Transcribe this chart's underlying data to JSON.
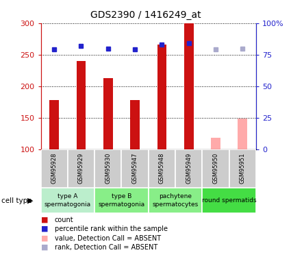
{
  "title": "GDS2390 / 1416249_at",
  "samples": [
    "GSM95928",
    "GSM95929",
    "GSM95930",
    "GSM95947",
    "GSM95948",
    "GSM95949",
    "GSM95950",
    "GSM95951"
  ],
  "bar_values": [
    178,
    240,
    213,
    178,
    266,
    300,
    null,
    null
  ],
  "bar_absent_values": [
    null,
    null,
    null,
    null,
    null,
    null,
    118,
    148
  ],
  "rank_values": [
    79,
    82,
    80,
    79,
    83,
    84,
    null,
    null
  ],
  "rank_absent_values": [
    null,
    null,
    null,
    null,
    null,
    null,
    79,
    80
  ],
  "bar_color": "#CC1111",
  "bar_absent_color": "#FFAAAA",
  "rank_color": "#2222CC",
  "rank_absent_color": "#AAAACC",
  "ylim_left": [
    100,
    300
  ],
  "ylim_right": [
    0,
    100
  ],
  "right_ticks": [
    0,
    25,
    50,
    75,
    100
  ],
  "right_tick_labels": [
    "0",
    "25",
    "50",
    "75",
    "100%"
  ],
  "left_ticks": [
    100,
    150,
    200,
    250,
    300
  ],
  "group_defs": [
    {
      "indices": [
        0,
        1
      ],
      "label": "type A\nspermatogonia",
      "color": "#BBEECC"
    },
    {
      "indices": [
        2,
        3
      ],
      "label": "type B\nspermatogonia",
      "color": "#88EE88"
    },
    {
      "indices": [
        4,
        5
      ],
      "label": "pachytene\nspermatocytes",
      "color": "#88EE88"
    },
    {
      "indices": [
        6,
        7
      ],
      "label": "round spermatids",
      "color": "#44DD44"
    }
  ],
  "cell_type_label": "cell type",
  "sample_box_color": "#CCCCCC",
  "legend_items": [
    {
      "color": "#CC1111",
      "label": "count"
    },
    {
      "color": "#2222CC",
      "label": "percentile rank within the sample"
    },
    {
      "color": "#FFAAAA",
      "label": "value, Detection Call = ABSENT"
    },
    {
      "color": "#AAAACC",
      "label": "rank, Detection Call = ABSENT"
    }
  ]
}
